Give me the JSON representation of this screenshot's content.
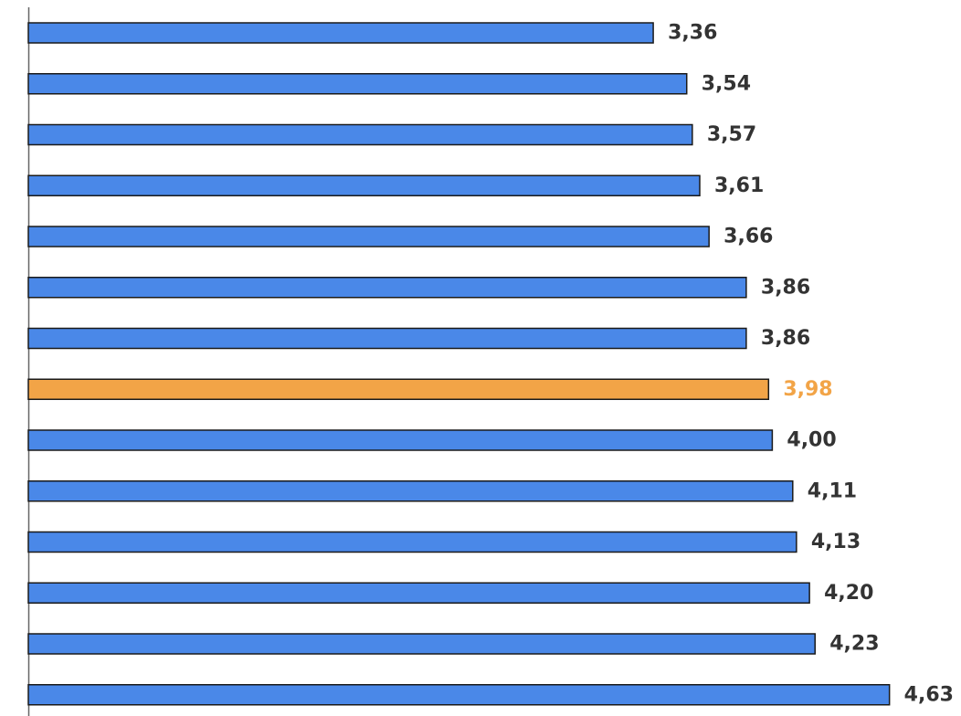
{
  "chart_data": {
    "type": "bar",
    "orientation": "horizontal",
    "values": [
      3.36,
      3.54,
      3.57,
      3.61,
      3.66,
      3.86,
      3.86,
      3.98,
      4.0,
      4.11,
      4.13,
      4.2,
      4.23,
      4.63
    ],
    "value_labels": [
      "3,36",
      "3,54",
      "3,57",
      "3,61",
      "3,66",
      "3,86",
      "3,86",
      "3,98",
      "4,00",
      "4,11",
      "4,13",
      "4,20",
      "4,23",
      "4,63"
    ],
    "highlight_index": 7,
    "title": "",
    "xlabel": "",
    "ylabel": "",
    "xlim": [
      0,
      4.8
    ],
    "grid": false,
    "colors": {
      "bar": "#4a88e8",
      "highlight": "#f2a447",
      "label": "#333333",
      "highlight_label": "#f2a447",
      "axis": "#666666"
    }
  }
}
